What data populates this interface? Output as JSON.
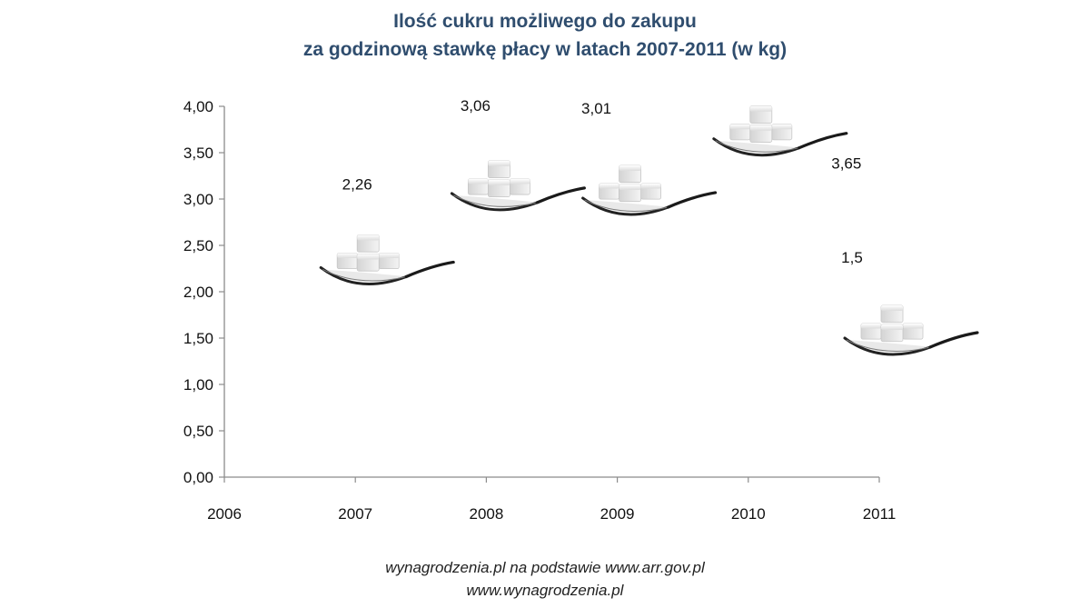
{
  "title_line1": "Ilość cukru możliwego do zakupu",
  "title_line2": "za godzinową stawkę płacy w latach 2007-2011 (w kg)",
  "footer_line1": "wynagrodzenia.pl na podstawie www.arr.gov.pl",
  "footer_line2": "www.wynagrodzenia.pl",
  "chart_data": {
    "type": "scatter",
    "title": "Ilość cukru możliwego do zakupu za godzinową stawkę płacy w latach 2007-2011 (w kg)",
    "x_ticks": [
      "2006",
      "2007",
      "2008",
      "2009",
      "2010",
      "2011"
    ],
    "y_ticks": [
      "0,00",
      "0,50",
      "1,00",
      "1,50",
      "2,00",
      "2,50",
      "3,00",
      "3,50",
      "4,00"
    ],
    "xlim": [
      2006,
      2011
    ],
    "ylim": [
      0,
      4
    ],
    "points": [
      {
        "x": 2007,
        "y": 2.26,
        "label": "2,26"
      },
      {
        "x": 2008,
        "y": 3.06,
        "label": "3,06"
      },
      {
        "x": 2009,
        "y": 3.01,
        "label": "3,01"
      },
      {
        "x": 2010,
        "y": 3.65,
        "label": "3,65"
      },
      {
        "x": 2011,
        "y": 1.5,
        "label": "1,5"
      }
    ],
    "marker": "sugar-cubes-on-spoon-icon",
    "colors": {
      "axis": "#8c8c8c",
      "title": "#2f4d6e",
      "text": "#111111"
    },
    "grid": false,
    "legend": "none"
  }
}
